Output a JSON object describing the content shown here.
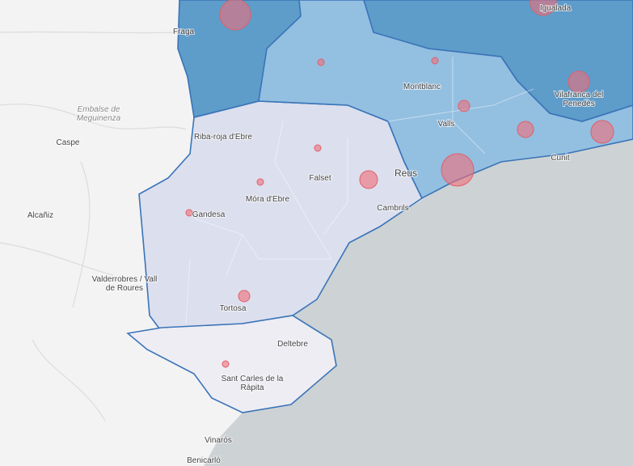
{
  "places": [
    [
      "Fraga"
    ],
    [
      "Igualada"
    ],
    [
      "Embalse de",
      "Meguinenza"
    ],
    [
      "Caspe"
    ],
    [
      "Riba-roja d'Ebre"
    ],
    [
      "Montblanc"
    ],
    [
      "Valls"
    ],
    [
      "Vilafranca del",
      "Penedès"
    ],
    [
      "Cunit"
    ],
    [
      "Falset"
    ],
    [
      "Reus"
    ],
    [
      "Móra d'Ebre"
    ],
    [
      "Gandesa"
    ],
    [
      "Cambrils"
    ],
    [
      "Alcañiz"
    ],
    [
      "Valderrobres / Vall",
      "de Roures"
    ],
    [
      "Tortosa"
    ],
    [
      "Deltebre"
    ],
    [
      "Sant Carles de la",
      "Ràpita"
    ],
    [
      "Vinaròs"
    ],
    [
      "Benicarló"
    ]
  ]
}
